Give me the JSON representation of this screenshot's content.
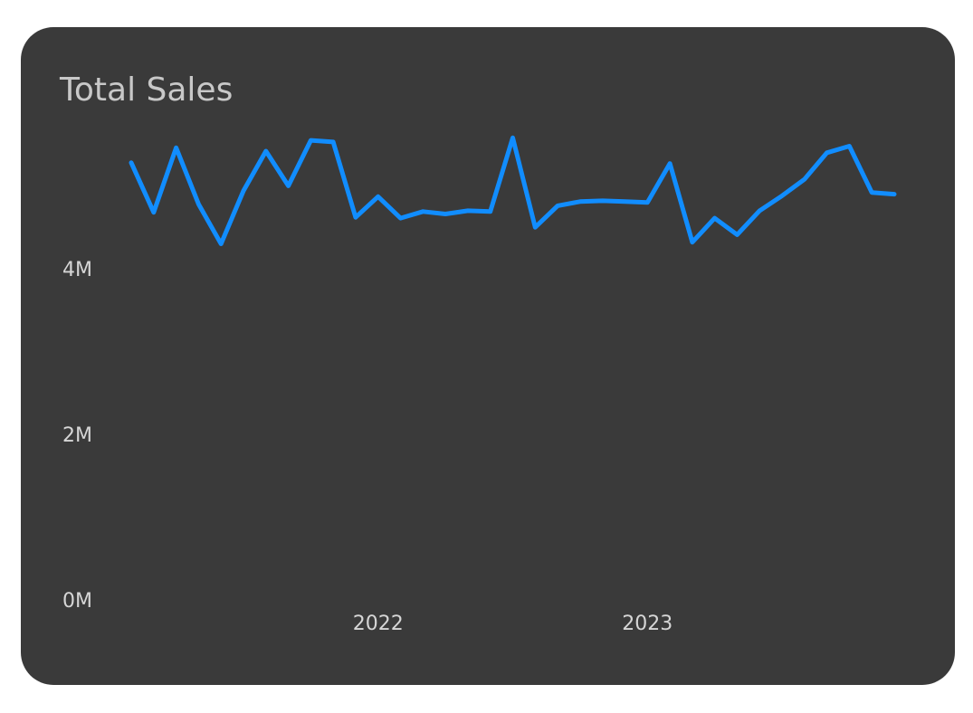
{
  "chart_data": {
    "type": "line",
    "title": "Total Sales",
    "categories": [
      null,
      null,
      null,
      null,
      null,
      null,
      null,
      null,
      null,
      null,
      null,
      "2022",
      null,
      null,
      null,
      null,
      null,
      null,
      null,
      null,
      null,
      null,
      null,
      "2023",
      null,
      null,
      null,
      null,
      null,
      null,
      null,
      null,
      null,
      null,
      null
    ],
    "series": [
      {
        "name": "Total Sales",
        "color": "#118dff",
        "values": [
          5300000,
          4700000,
          5480000,
          4800000,
          4320000,
          4960000,
          5440000,
          5020000,
          5570000,
          5550000,
          4640000,
          4890000,
          4630000,
          4710000,
          4680000,
          4720000,
          4710000,
          5600000,
          4520000,
          4780000,
          4830000,
          4840000,
          4830000,
          4820000,
          5290000,
          4340000,
          4630000,
          4430000,
          4720000,
          4900000,
          5100000,
          5420000,
          5500000,
          4940000,
          4920000
        ]
      }
    ],
    "ylim": [
      0,
      5800000
    ],
    "yticks": [
      {
        "value": 0,
        "label": "0M"
      },
      {
        "value": 2000000,
        "label": "2M"
      },
      {
        "value": 4000000,
        "label": "4M"
      }
    ],
    "grid": false
  }
}
